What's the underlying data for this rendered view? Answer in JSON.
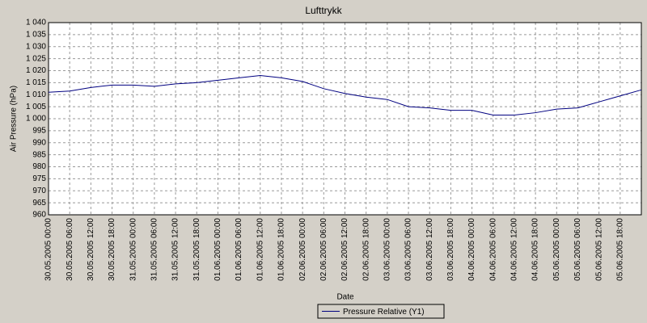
{
  "chart_data": {
    "type": "line",
    "title": "Lufttrykk",
    "x_label": "Date",
    "y_label": "Air Pressure (hPa)",
    "x": [
      "30.05.2005 00:00",
      "30.05.2005 06:00",
      "30.05.2005 12:00",
      "30.05.2005 18:00",
      "31.05.2005 00:00",
      "31.05.2005 06:00",
      "31.05.2005 12:00",
      "31.05.2005 18:00",
      "01.06.2005 00:00",
      "01.06.2005 06:00",
      "01.06.2005 12:00",
      "01.06.2005 18:00",
      "02.06.2005 00:00",
      "02.06.2005 06:00",
      "02.06.2005 12:00",
      "02.06.2005 18:00",
      "03.06.2005 00:00",
      "03.06.2005 06:00",
      "03.06.2005 12:00",
      "03.06.2005 18:00",
      "04.06.2005 00:00",
      "04.06.2005 06:00",
      "04.06.2005 12:00",
      "04.06.2005 18:00",
      "05.06.2005 00:00",
      "05.06.2005 06:00",
      "05.06.2005 12:00",
      "05.06.2005 18:00",
      "06.06.2005 00:00"
    ],
    "series": [
      {
        "name": "Pressure Relative (Y1)",
        "color": "#000080",
        "values": [
          1011,
          1011.5,
          1013,
          1014,
          1014,
          1013.5,
          1014.5,
          1015,
          1016,
          1017,
          1018,
          1017,
          1015.5,
          1012.5,
          1010.5,
          1009,
          1008,
          1005,
          1004.5,
          1003.5,
          1003.5,
          1001.5,
          1001.5,
          1002.5,
          1004,
          1004.5,
          1007,
          1009.5,
          1012
        ]
      }
    ],
    "xlim": [
      "30.05.2005 00:00",
      "06.06.2005 00:00"
    ],
    "xticks": [
      "30.05.2005 00:00",
      "30.05.2005 06:00",
      "30.05.2005 12:00",
      "30.05.2005 18:00",
      "31.05.2005 00:00",
      "31.05.2005 06:00",
      "31.05.2005 12:00",
      "31.05.2005 18:00",
      "01.06.2005 00:00",
      "01.06.2005 06:00",
      "01.06.2005 12:00",
      "01.06.2005 18:00",
      "02.06.2005 00:00",
      "02.06.2005 06:00",
      "02.06.2005 12:00",
      "02.06.2005 18:00",
      "03.06.2005 00:00",
      "03.06.2005 06:00",
      "03.06.2005 12:00",
      "03.06.2005 18:00",
      "04.06.2005 00:00",
      "04.06.2005 06:00",
      "04.06.2005 12:00",
      "04.06.2005 18:00",
      "05.06.2005 00:00",
      "05.06.2005 06:00",
      "05.06.2005 12:00",
      "05.06.2005 18:00"
    ],
    "ylim": [
      960,
      1040
    ],
    "yticks": [
      960,
      965,
      970,
      975,
      980,
      985,
      990,
      995,
      {
        "value": 1000,
        "label": "1 000"
      },
      {
        "value": 1005,
        "label": "1 005"
      },
      {
        "value": 1010,
        "label": "1 010"
      },
      {
        "value": 1015,
        "label": "1 015"
      },
      {
        "value": 1020,
        "label": "1 020"
      },
      {
        "value": 1025,
        "label": "1 025"
      },
      {
        "value": 1030,
        "label": "1 030"
      },
      {
        "value": 1035,
        "label": "1 035"
      },
      {
        "value": 1040,
        "label": "1 040"
      }
    ],
    "grid": true,
    "legend": "bottom"
  }
}
